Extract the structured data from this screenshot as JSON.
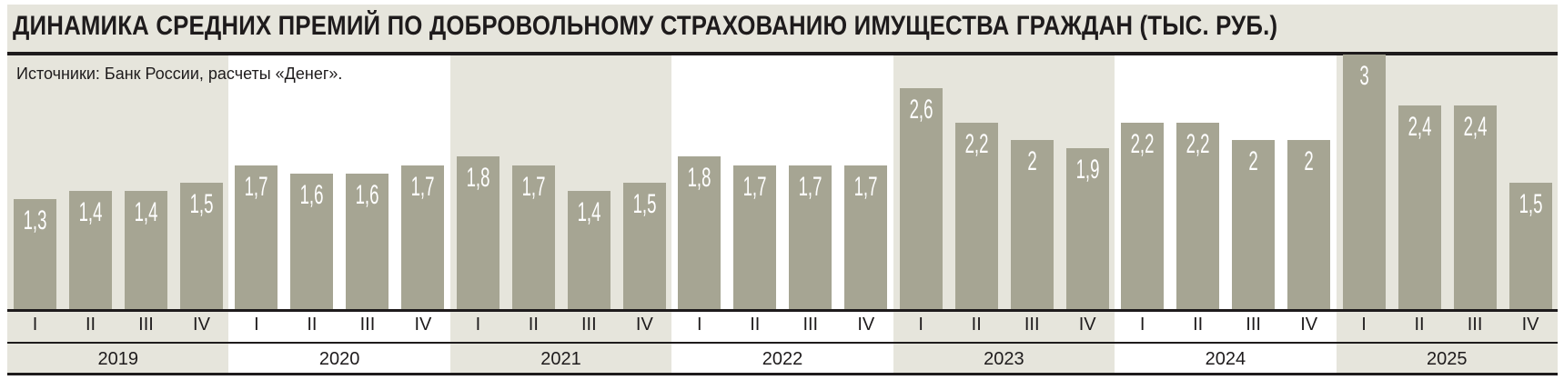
{
  "title": "ДИНАМИКА СРЕДНИХ ПРЕМИЙ ПО ДОБРОВОЛЬНОМУ СТРАХОВАНИЮ ИМУЩЕСТВА ГРАЖДАН (ТЫС. РУБ.)",
  "source": "Источники: Банк России, расчеты «Денег».",
  "colors": {
    "bar": "#a6a593",
    "shade": "#e6e5dc",
    "text": "#1e1b1c"
  },
  "chart_data": {
    "type": "bar",
    "title": "ДИНАМИКА СРЕДНИХ ПРЕМИЙ ПО ДОБРОВОЛЬНОМУ СТРАХОВАНИЮ ИМУЩЕСТВА ГРАЖДАН (ТЫС. РУБ.)",
    "quarters": [
      "I",
      "II",
      "III",
      "IV"
    ],
    "years": [
      "2019",
      "2020",
      "2021",
      "2022",
      "2023",
      "2024",
      "2025"
    ],
    "values": [
      [
        1.3,
        1.4,
        1.4,
        1.5
      ],
      [
        1.7,
        1.6,
        1.6,
        1.7
      ],
      [
        1.8,
        1.7,
        1.4,
        1.5
      ],
      [
        1.8,
        1.7,
        1.7,
        1.7
      ],
      [
        2.6,
        2.2,
        2,
        1.9
      ],
      [
        2.2,
        2.2,
        2,
        2
      ],
      [
        3,
        2.4,
        2.4,
        1.5
      ]
    ],
    "labels": [
      [
        "1,3",
        "1,4",
        "1,4",
        "1,5"
      ],
      [
        "1,7",
        "1,6",
        "1,6",
        "1,7"
      ],
      [
        "1,8",
        "1,7",
        "1,4",
        "1,5"
      ],
      [
        "1,8",
        "1,7",
        "1,7",
        "1,7"
      ],
      [
        "2,6",
        "2,2",
        "2",
        "1,9"
      ],
      [
        "2,2",
        "2,2",
        "2",
        "2"
      ],
      [
        "3",
        "2,4",
        "2,4",
        "1,5"
      ]
    ],
    "ylim": [
      0,
      3
    ],
    "grid": false,
    "legend": "none"
  }
}
